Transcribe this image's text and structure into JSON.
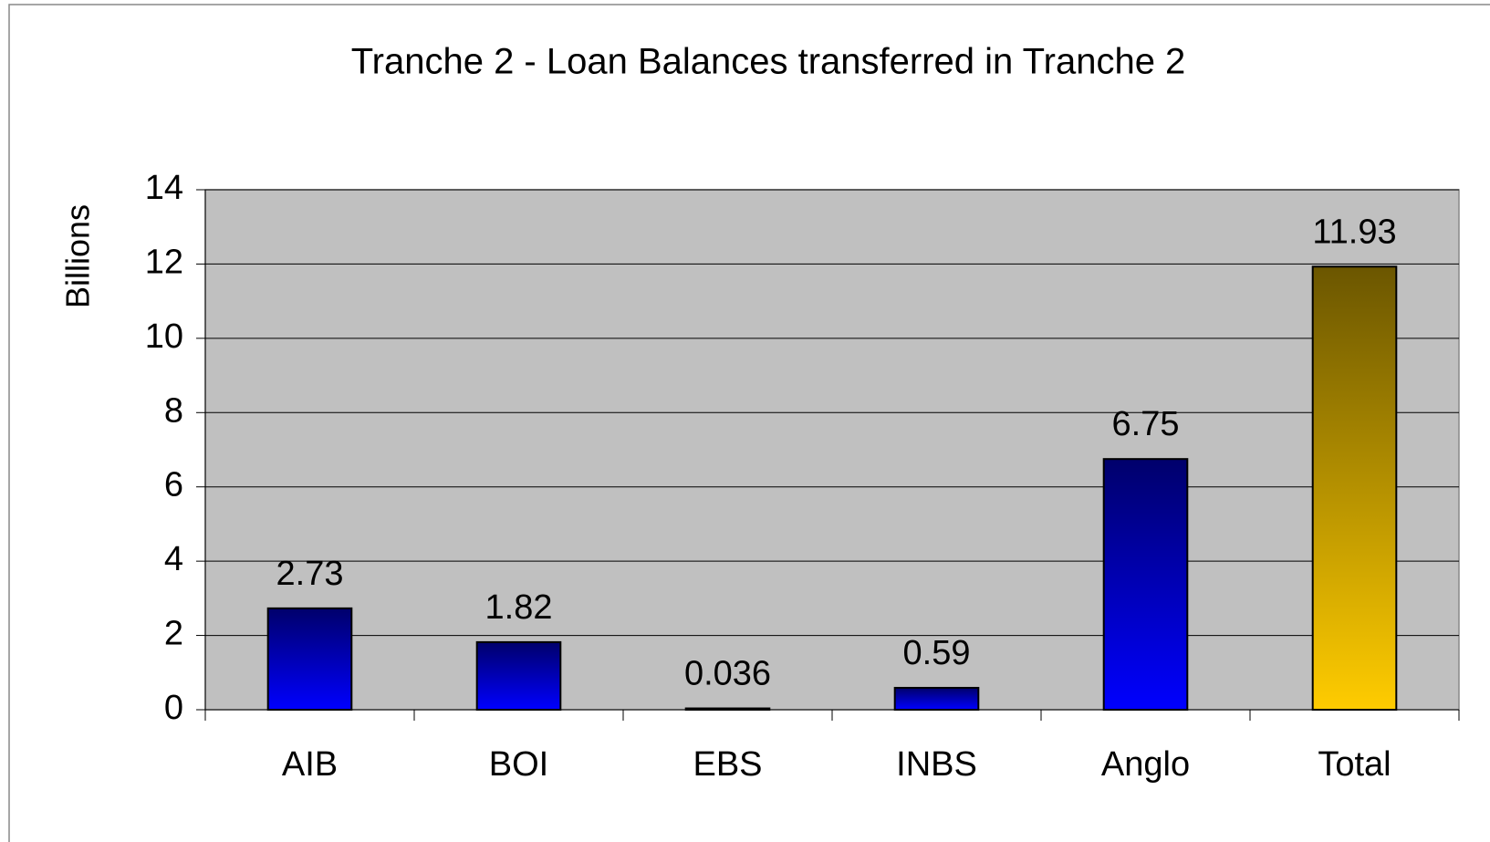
{
  "chart_data": {
    "type": "bar",
    "title": "Tranche 2 - Loan Balances transferred in Tranche 2",
    "y_label": "Billions",
    "categories": [
      "AIB",
      "BOI",
      "EBS",
      "INBS",
      "Anglo",
      "Total"
    ],
    "values": [
      2.73,
      1.82,
      0.036,
      0.59,
      6.75,
      11.93
    ],
    "colors": [
      "#0000ff",
      "#0000ff",
      "#0000ff",
      "#0000ff",
      "#0000ff",
      "#ffcc00"
    ],
    "ylim": [
      0,
      14
    ],
    "yticks": [
      0,
      2,
      4,
      6,
      8,
      10,
      12,
      14
    ],
    "grid": true,
    "plot_background": "#c0c0c0"
  }
}
